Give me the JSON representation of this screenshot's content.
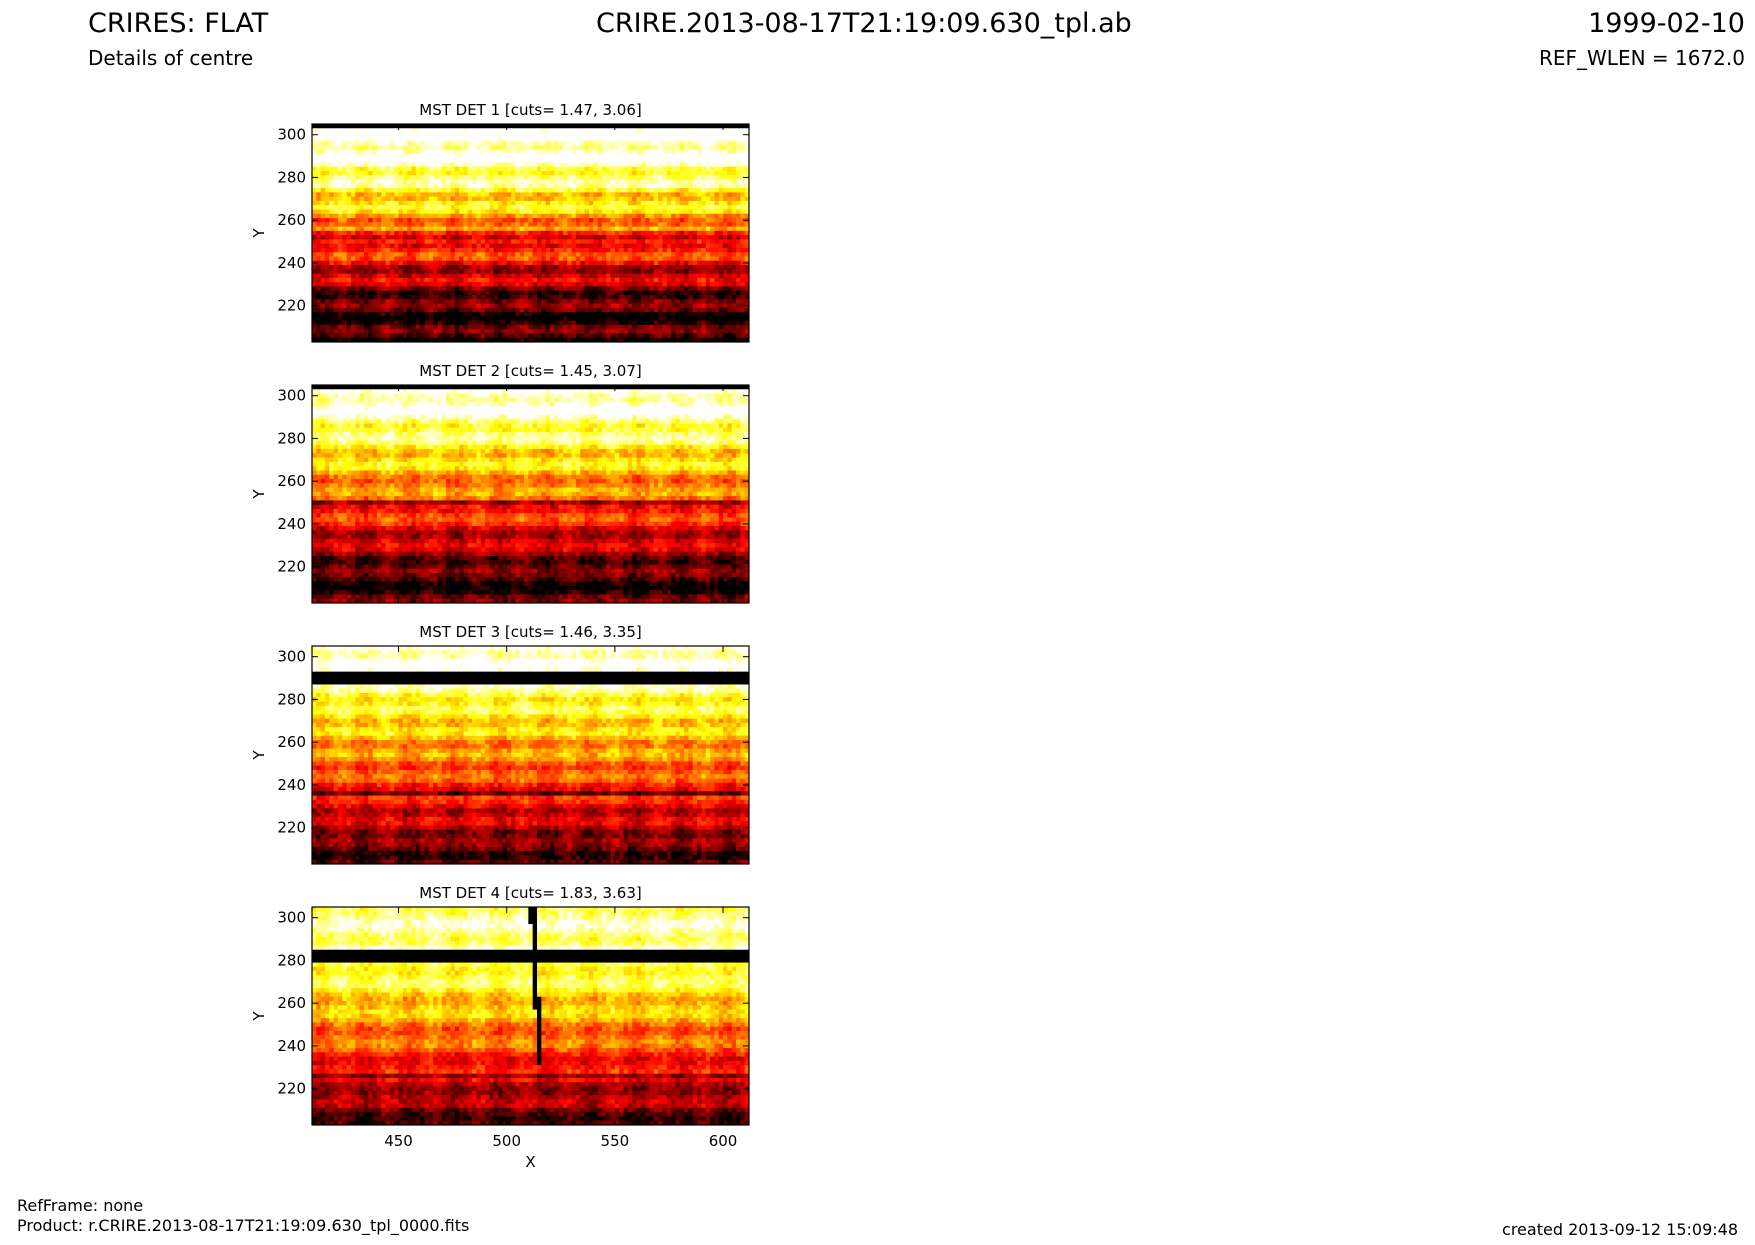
{
  "header": {
    "title_left": "CRIRES: FLAT",
    "title_center": "CRIRE.2013-08-17T21:19:09.630_tpl.ab",
    "title_right": "1999-02-10",
    "subtitle_left": "Details of centre",
    "subtitle_right": "REF_WLEN = 1672.0"
  },
  "footer": {
    "refframe": "RefFrame: none",
    "product": "Product: r.CRIRE.2013-08-17T21:19:09.630_tpl_0000.fits",
    "created": "created 2013-09-12 15:09:48"
  },
  "chart_data": {
    "type": "heatmap",
    "colormap": "hot",
    "xlabel": "X",
    "ylabel": "Y",
    "xlim": [
      410,
      612
    ],
    "ylim": [
      203,
      305
    ],
    "x_ticks": [
      450,
      500,
      550,
      600
    ],
    "y_ticks": [
      220,
      240,
      260,
      280,
      300
    ],
    "panels": [
      {
        "title": "MST DET 1 [cuts= 1.47, 3.06]",
        "cuts": [
          1.47,
          3.06
        ]
      },
      {
        "title": "MST DET 2 [cuts= 1.45, 3.07]",
        "cuts": [
          1.45,
          3.07
        ]
      },
      {
        "title": "MST DET 3 [cuts= 1.46, 3.35]",
        "cuts": [
          1.46,
          3.35
        ]
      },
      {
        "title": "MST DET 4 [cuts= 1.83, 3.63]",
        "cuts": [
          1.83,
          3.63
        ]
      }
    ]
  }
}
